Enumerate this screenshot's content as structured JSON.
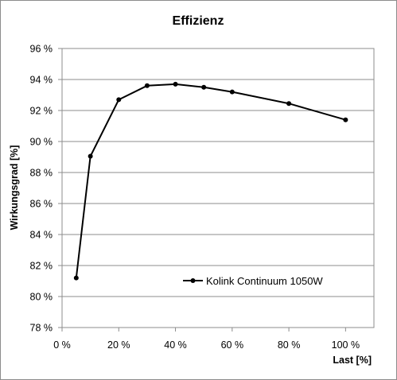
{
  "chart_data": {
    "type": "line",
    "title": "Effizienz",
    "xlabel": "Last [%]",
    "ylabel": "Wirkungsgrad [%]",
    "xlim": [
      0,
      110
    ],
    "ylim": [
      78,
      96
    ],
    "x_ticks": [
      {
        "value": 0,
        "label": "0 %"
      },
      {
        "value": 20,
        "label": "20 %"
      },
      {
        "value": 40,
        "label": "40 %"
      },
      {
        "value": 60,
        "label": "60 %"
      },
      {
        "value": 80,
        "label": "80 %"
      },
      {
        "value": 100,
        "label": "100 %"
      }
    ],
    "y_ticks": [
      {
        "value": 78,
        "label": "78 %"
      },
      {
        "value": 80,
        "label": "80 %"
      },
      {
        "value": 82,
        "label": "82 %"
      },
      {
        "value": 84,
        "label": "84 %"
      },
      {
        "value": 86,
        "label": "86 %"
      },
      {
        "value": 88,
        "label": "88 %"
      },
      {
        "value": 90,
        "label": "90 %"
      },
      {
        "value": 92,
        "label": "92 %"
      },
      {
        "value": 94,
        "label": "94 %"
      },
      {
        "value": 96,
        "label": "96 %"
      }
    ],
    "grid": "horizontal",
    "legend_position": "bottom-right",
    "series": [
      {
        "name": "Kolink Continuum 1050W",
        "color": "#000000",
        "x": [
          5,
          10,
          20,
          30,
          40,
          50,
          60,
          80,
          100
        ],
        "y": [
          81.2,
          89.05,
          92.7,
          93.6,
          93.7,
          93.5,
          93.2,
          92.45,
          91.4
        ]
      }
    ]
  }
}
